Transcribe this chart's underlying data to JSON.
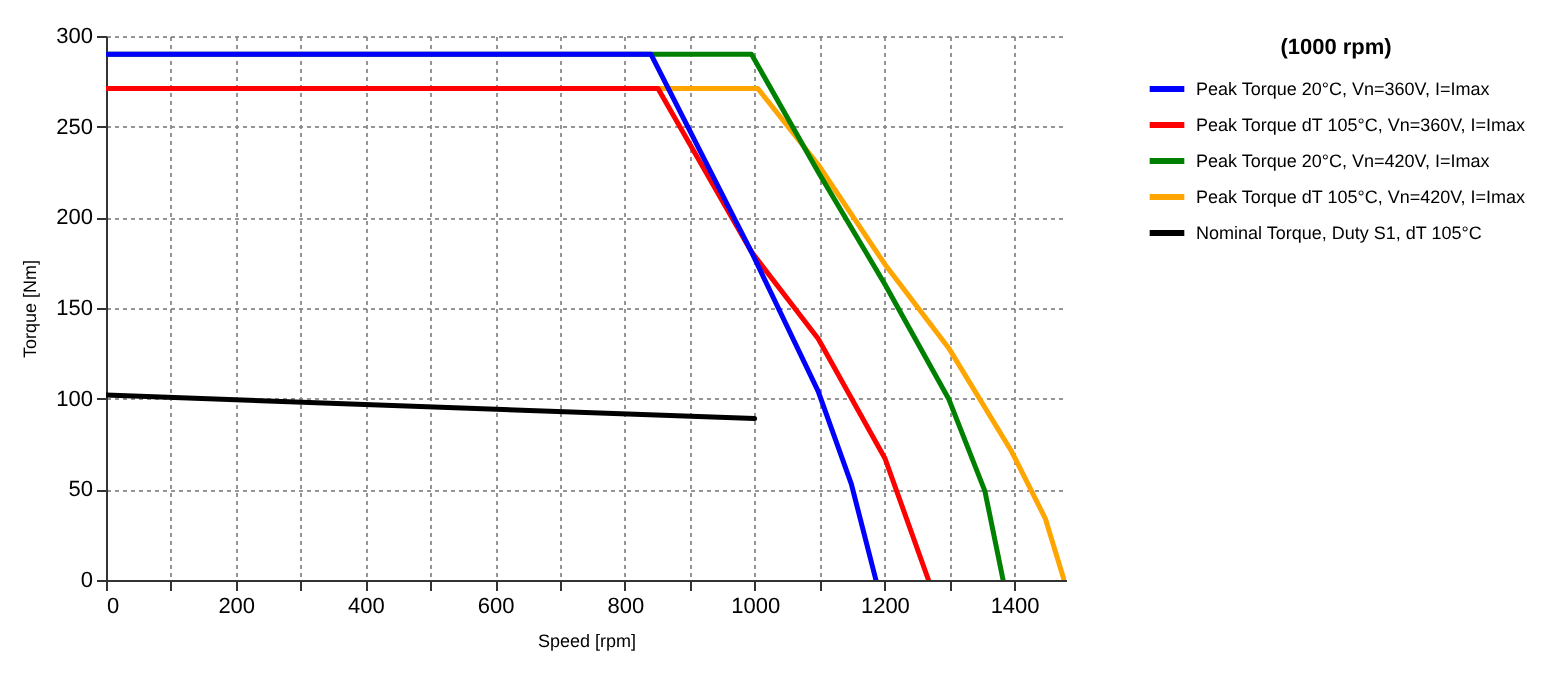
{
  "chart_data": {
    "type": "line",
    "xlabel": "Speed [rpm]",
    "ylabel": "Torque [Nm]",
    "legend_title": "(1000 rpm)",
    "legend": "right",
    "grid": true,
    "line_style": "solid",
    "marker": "none",
    "xlim": [
      0,
      1480
    ],
    "ylim": [
      0,
      300
    ],
    "xticks": [
      0,
      {
        "value": 100,
        "label": null
      },
      200,
      {
        "value": 300,
        "label": null
      },
      400,
      {
        "value": 500,
        "label": null
      },
      600,
      {
        "value": 700,
        "label": null
      },
      800,
      {
        "value": 900,
        "label": null
      },
      1000,
      {
        "value": 1100,
        "label": null
      },
      1200,
      {
        "value": 1300,
        "label": null
      },
      1400
    ],
    "yticks": [
      0,
      50,
      100,
      150,
      200,
      250,
      300
    ],
    "series": [
      {
        "name": "Peak Torque 20°C, Vn=360V, I=Imax",
        "color": "#0000ff",
        "x": [
          0,
          840,
          995,
          1098,
          1149,
          1187
        ],
        "values": [
          290,
          290,
          181,
          104,
          53,
          0
        ]
      },
      {
        "name": "Peak Torque dT 105°C, Vn=360V, I=Imax",
        "color": "#ff0000",
        "x": [
          0,
          851,
          995,
          1098,
          1201,
          1268
        ],
        "values": [
          271,
          271,
          181,
          133,
          67,
          0
        ]
      },
      {
        "name": "Peak Torque 20°C, Vn=420V, I=Imax",
        "color": "#008000",
        "x": [
          0,
          995,
          1098,
          1201,
          1299,
          1355,
          1383
        ],
        "values": [
          290,
          290,
          225,
          163,
          100,
          49,
          0
        ]
      },
      {
        "name": "Peak Torque dT 105°C, Vn=420V, I=Imax",
        "color": "#ffa500",
        "x": [
          0,
          1005,
          1098,
          1201,
          1299,
          1396,
          1448,
          1477
        ],
        "values": [
          271,
          271,
          229,
          174,
          128,
          71,
          34,
          0
        ]
      },
      {
        "name": "Nominal Torque, Duty S1, dT 105°C",
        "color": "#000000",
        "x": [
          0,
          1000
        ],
        "values": [
          102,
          89
        ]
      }
    ]
  }
}
